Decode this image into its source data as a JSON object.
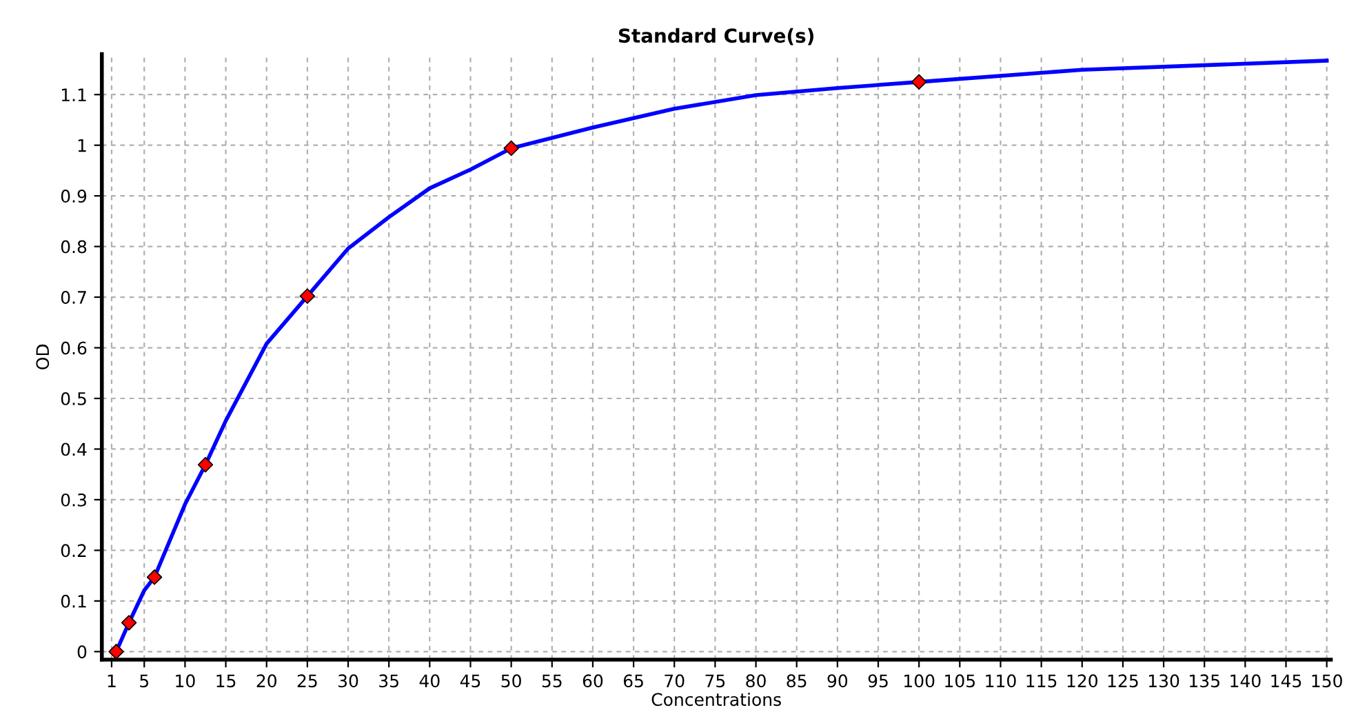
{
  "chart_data": {
    "type": "scatter",
    "title": "Standard Curve(s)",
    "xlabel": "Concentrations",
    "ylabel": "OD",
    "series": [
      {
        "type": "line",
        "color": "#0000ff",
        "marker": "none",
        "x": [
          1.5625,
          3.125,
          5,
          6.25,
          10,
          12.5,
          15,
          20,
          25,
          30,
          35,
          40,
          45,
          50,
          60,
          70,
          80,
          90,
          100,
          120,
          150
        ],
        "values": [
          0,
          0.057,
          0.121,
          0.147,
          0.291,
          0.369,
          0.456,
          0.608,
          0.702,
          0.796,
          0.858,
          0.915,
          0.952,
          0.994,
          1.035,
          1.072,
          1.099,
          1.113,
          1.125,
          1.149,
          1.167
        ]
      },
      {
        "color": "#ff0000",
        "marker": "diamond",
        "x": [
          1.5625,
          3.125,
          6.25,
          12.5,
          25,
          50,
          100
        ],
        "values": [
          0,
          0.057,
          0.147,
          0.369,
          0.702,
          0.994,
          1.125
        ]
      }
    ],
    "xlim": [
      -0.2,
      150.5
    ],
    "ylim": [
      -0.016,
      1.18
    ],
    "xticks": [
      1,
      5,
      10,
      15,
      20,
      25,
      30,
      35,
      40,
      45,
      50,
      55,
      60,
      65,
      70,
      75,
      80,
      85,
      90,
      95,
      100,
      105,
      110,
      115,
      120,
      125,
      130,
      135,
      140,
      145,
      150
    ],
    "yticks": [
      0,
      0.1,
      0.2,
      0.3,
      0.4,
      0.5,
      0.6,
      0.7,
      0.8,
      0.9,
      1,
      1.1
    ],
    "grid": true,
    "legend": false
  }
}
